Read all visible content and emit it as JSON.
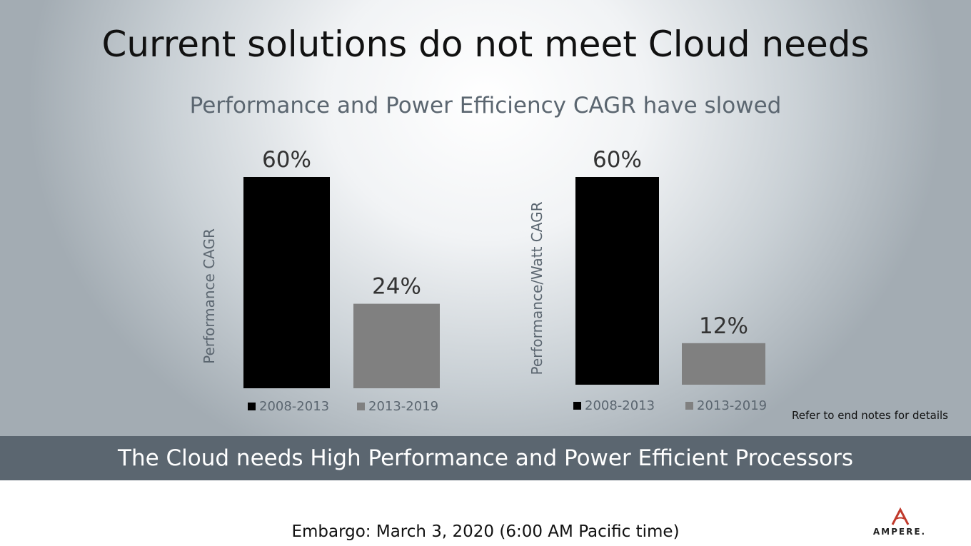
{
  "slide": {
    "title": "Current solutions do not meet Cloud needs",
    "subtitle": "Performance and Power Efficiency CAGR have slowed",
    "ref_note": "Refer to end notes for details",
    "banner": "The Cloud needs High Performance and Power Efficient Processors",
    "embargo": "Embargo: March 3, 2020 (6:00 AM Pacific time)",
    "logo_text": "AMPERE.",
    "logo_icon": "ampere-a-icon"
  },
  "chart_data": [
    {
      "type": "bar",
      "ylabel": "Performance CAGR",
      "categories": [
        "2008-2013",
        "2013-2019"
      ],
      "values": [
        60,
        24
      ],
      "data_labels": [
        "60%",
        "24%"
      ],
      "colors": [
        "#000000",
        "#808080"
      ],
      "legend": [
        "2008-2013",
        "2013-2019"
      ],
      "legend_position": "bottom",
      "ylim": [
        0,
        60
      ],
      "grid": false
    },
    {
      "type": "bar",
      "ylabel": "Performance/Watt CAGR",
      "categories": [
        "2008-2013",
        "2013-2019"
      ],
      "values": [
        60,
        12
      ],
      "data_labels": [
        "60%",
        "12%"
      ],
      "colors": [
        "#000000",
        "#808080"
      ],
      "legend": [
        "2008-2013",
        "2013-2019"
      ],
      "legend_position": "bottom",
      "ylim": [
        0,
        60
      ],
      "grid": false
    }
  ]
}
